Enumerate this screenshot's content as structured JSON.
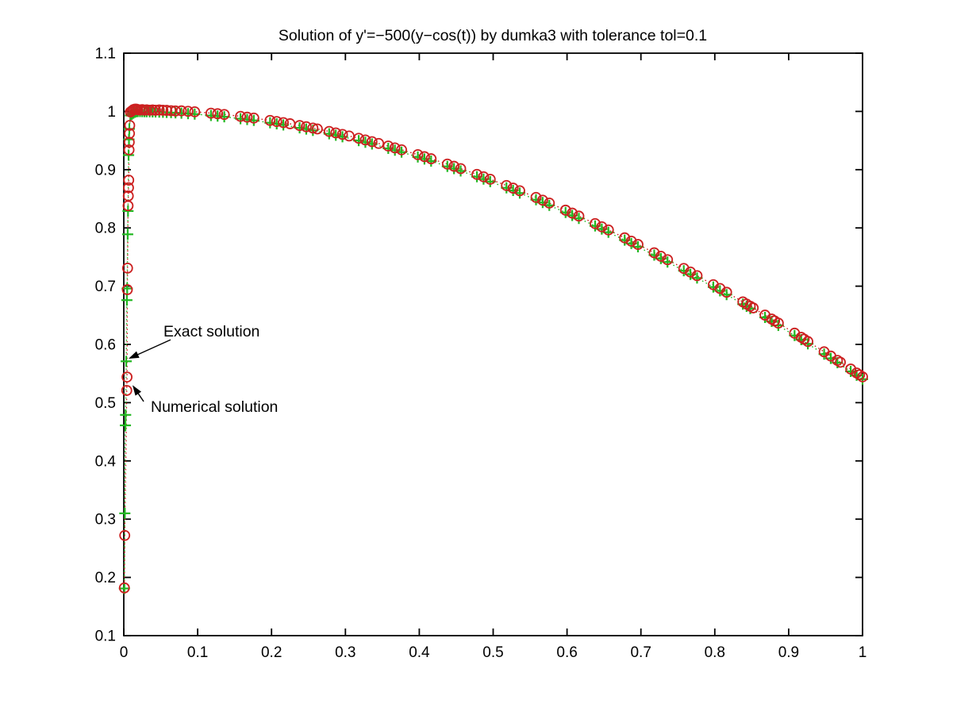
{
  "figure": {
    "background": "#ffffff",
    "axes_color": "#000000"
  },
  "chart_data": {
    "type": "scatter",
    "title": "Solution of y'=−500(y−cos(t)) by dumka3 with tolerance tol=0.1",
    "xlabel": "",
    "ylabel": "",
    "xlim": [
      0,
      1
    ],
    "ylim": [
      0.1,
      1.1
    ],
    "grid": false,
    "legend_position": "none",
    "xtick_values": [
      0,
      0.1,
      0.2,
      0.3,
      0.4,
      0.5,
      0.6,
      0.7,
      0.8,
      0.9,
      1
    ],
    "xtick_labels": [
      "0",
      "0.1",
      "0.2",
      "0.3",
      "0.4",
      "0.5",
      "0.6",
      "0.7",
      "0.8",
      "0.9",
      "1"
    ],
    "ytick_values": [
      0.1,
      0.2,
      0.3,
      0.4,
      0.5,
      0.6,
      0.7,
      0.8,
      0.9,
      1,
      1.1
    ],
    "ytick_labels": [
      "0.1",
      "0.2",
      "0.3",
      "0.4",
      "0.5",
      "0.6",
      "0.7",
      "0.8",
      "0.9",
      "1",
      "1.1"
    ],
    "annotations": [
      {
        "text": "Exact solution",
        "text_xy": [
          0.0537,
          0.623
        ],
        "arrow_from": [
          0.0634,
          0.608
        ],
        "arrow_to": [
          0.0064,
          0.5754
        ]
      },
      {
        "text": "Numerical solution",
        "text_xy": [
          0.0365,
          0.4938
        ],
        "arrow_from": [
          0.0269,
          0.502
        ],
        "arrow_to": [
          0.0118,
          0.53
        ]
      }
    ],
    "series": [
      {
        "name": "Exact solution",
        "marker": "plus",
        "color": "#22b822",
        "line_style": "dotted",
        "points": [
          [
            0.0008,
            0.181
          ],
          [
            0.0014,
            0.31
          ],
          [
            0.0022,
            0.461
          ],
          [
            0.0025,
            0.479
          ],
          [
            0.0033,
            0.571
          ],
          [
            0.0042,
            0.676
          ],
          [
            0.0046,
            0.696
          ],
          [
            0.0053,
            0.789
          ],
          [
            0.0057,
            0.829
          ],
          [
            0.0065,
            0.925
          ],
          [
            0.007,
            0.952
          ],
          [
            0.0075,
            0.97
          ],
          [
            0.009,
            0.993
          ],
          [
            0.011,
            0.995
          ],
          [
            0.013,
            0.997
          ],
          [
            0.015,
            0.9985
          ],
          [
            0.017,
            0.9995
          ],
          [
            0.019,
            0.9998
          ],
          [
            0.022,
            0.9998
          ],
          [
            0.025,
            0.9997
          ],
          [
            0.028,
            0.9996
          ],
          [
            0.031,
            0.9995
          ],
          [
            0.035,
            0.9994
          ],
          [
            0.039,
            0.9992
          ],
          [
            0.043,
            0.9991
          ],
          [
            0.048,
            0.9988
          ],
          [
            0.053,
            0.9986
          ],
          [
            0.058,
            0.9983
          ],
          [
            0.064,
            0.998
          ],
          [
            0.07,
            0.9976
          ],
          [
            0.078,
            0.997
          ],
          [
            0.087,
            0.9962
          ],
          [
            0.096,
            0.9954
          ],
          [
            0.118,
            0.993
          ],
          [
            0.127,
            0.992
          ],
          [
            0.136,
            0.9908
          ],
          [
            0.158,
            0.9875
          ],
          [
            0.167,
            0.9861
          ],
          [
            0.176,
            0.9846
          ],
          [
            0.198,
            0.9805
          ],
          [
            0.207,
            0.9787
          ],
          [
            0.216,
            0.9768
          ],
          [
            0.238,
            0.9718
          ],
          [
            0.247,
            0.9697
          ],
          [
            0.256,
            0.9674
          ],
          [
            0.278,
            0.9616
          ],
          [
            0.287,
            0.9591
          ],
          [
            0.296,
            0.9565
          ],
          [
            0.318,
            0.9499
          ],
          [
            0.327,
            0.947
          ],
          [
            0.336,
            0.9441
          ],
          [
            0.358,
            0.9366
          ],
          [
            0.367,
            0.9334
          ],
          [
            0.376,
            0.9301
          ],
          [
            0.398,
            0.9218
          ],
          [
            0.407,
            0.9183
          ],
          [
            0.416,
            0.9147
          ],
          [
            0.438,
            0.9056
          ],
          [
            0.447,
            0.9018
          ],
          [
            0.456,
            0.8978
          ],
          [
            0.478,
            0.8879
          ],
          [
            0.487,
            0.8838
          ],
          [
            0.496,
            0.8795
          ],
          [
            0.518,
            0.8688
          ],
          [
            0.527,
            0.8643
          ],
          [
            0.536,
            0.8598
          ],
          [
            0.558,
            0.8484
          ],
          [
            0.567,
            0.8436
          ],
          [
            0.576,
            0.8387
          ],
          [
            0.598,
            0.8265
          ],
          [
            0.607,
            0.8214
          ],
          [
            0.616,
            0.8163
          ],
          [
            0.638,
            0.8034
          ],
          [
            0.647,
            0.798
          ],
          [
            0.656,
            0.7925
          ],
          [
            0.678,
            0.779
          ],
          [
            0.687,
            0.7733
          ],
          [
            0.696,
            0.7676
          ],
          [
            0.718,
            0.7533
          ],
          [
            0.727,
            0.7474
          ],
          [
            0.736,
            0.7414
          ],
          [
            0.758,
            0.7265
          ],
          [
            0.767,
            0.7203
          ],
          [
            0.776,
            0.714
          ],
          [
            0.798,
            0.6985
          ],
          [
            0.807,
            0.692
          ],
          [
            0.816,
            0.6855
          ],
          [
            0.838,
            0.669
          ],
          [
            0.843,
            0.6653
          ],
          [
            0.848,
            0.6616
          ],
          [
            0.868,
            0.6463
          ],
          [
            0.877,
            0.6395
          ],
          [
            0.886,
            0.6326
          ],
          [
            0.908,
            0.6153
          ],
          [
            0.917,
            0.6082
          ],
          [
            0.926,
            0.601
          ],
          [
            0.948,
            0.5833
          ],
          [
            0.957,
            0.576
          ],
          [
            0.966,
            0.5686
          ],
          [
            0.984,
            0.5537
          ],
          [
            0.992,
            0.547
          ],
          [
            1.0,
            0.5403
          ]
        ]
      },
      {
        "name": "Numerical solution",
        "marker": "circle",
        "color": "#cc2020",
        "line_style": "dotted",
        "points": [
          [
            0.0008,
            0.182
          ],
          [
            0.0013,
            0.272
          ],
          [
            0.004,
            0.521
          ],
          [
            0.0044,
            0.544
          ],
          [
            0.0048,
            0.694
          ],
          [
            0.0051,
            0.731
          ],
          [
            0.0058,
            0.838
          ],
          [
            0.0061,
            0.855
          ],
          [
            0.0064,
            0.869
          ],
          [
            0.0067,
            0.882
          ],
          [
            0.0071,
            0.934
          ],
          [
            0.0074,
            0.947
          ],
          [
            0.0077,
            0.962
          ],
          [
            0.008,
            0.976
          ],
          [
            0.009,
            0.999
          ],
          [
            0.011,
            1.001
          ],
          [
            0.013,
            1.003
          ],
          [
            0.015,
            1.004
          ],
          [
            0.017,
            1.004
          ],
          [
            0.019,
            1.003
          ],
          [
            0.022,
            1.0025
          ],
          [
            0.025,
            1.003
          ],
          [
            0.028,
            1.0022
          ],
          [
            0.031,
            1.0028
          ],
          [
            0.035,
            1.002
          ],
          [
            0.039,
            1.0026
          ],
          [
            0.043,
            1.002
          ],
          [
            0.048,
            1.0025
          ],
          [
            0.053,
            1.002
          ],
          [
            0.058,
            1.0018
          ],
          [
            0.064,
            1.0012
          ],
          [
            0.07,
            1.0008
          ],
          [
            0.078,
            1.001
          ],
          [
            0.087,
            1.0002
          ],
          [
            0.096,
            0.9994
          ],
          [
            0.118,
            0.997
          ],
          [
            0.127,
            0.996
          ],
          [
            0.136,
            0.9948
          ],
          [
            0.158,
            0.9915
          ],
          [
            0.167,
            0.9901
          ],
          [
            0.176,
            0.9886
          ],
          [
            0.198,
            0.9845
          ],
          [
            0.207,
            0.9827
          ],
          [
            0.216,
            0.9808
          ],
          [
            0.225,
            0.9788
          ],
          [
            0.238,
            0.9758
          ],
          [
            0.247,
            0.9737
          ],
          [
            0.256,
            0.9714
          ],
          [
            0.262,
            0.9699
          ],
          [
            0.278,
            0.9656
          ],
          [
            0.287,
            0.9631
          ],
          [
            0.296,
            0.9605
          ],
          [
            0.305,
            0.9578
          ],
          [
            0.318,
            0.9539
          ],
          [
            0.327,
            0.951
          ],
          [
            0.336,
            0.9481
          ],
          [
            0.345,
            0.945
          ],
          [
            0.358,
            0.9406
          ],
          [
            0.367,
            0.9374
          ],
          [
            0.376,
            0.9341
          ],
          [
            0.398,
            0.9258
          ],
          [
            0.407,
            0.9223
          ],
          [
            0.416,
            0.9187
          ],
          [
            0.438,
            0.9096
          ],
          [
            0.447,
            0.9058
          ],
          [
            0.456,
            0.9018
          ],
          [
            0.478,
            0.8919
          ],
          [
            0.487,
            0.8878
          ],
          [
            0.496,
            0.8835
          ],
          [
            0.518,
            0.8728
          ],
          [
            0.527,
            0.8683
          ],
          [
            0.536,
            0.8638
          ],
          [
            0.558,
            0.8524
          ],
          [
            0.567,
            0.8476
          ],
          [
            0.576,
            0.8427
          ],
          [
            0.598,
            0.8305
          ],
          [
            0.607,
            0.8254
          ],
          [
            0.616,
            0.8203
          ],
          [
            0.638,
            0.8074
          ],
          [
            0.647,
            0.802
          ],
          [
            0.656,
            0.7965
          ],
          [
            0.678,
            0.783
          ],
          [
            0.687,
            0.7773
          ],
          [
            0.696,
            0.7716
          ],
          [
            0.718,
            0.7573
          ],
          [
            0.727,
            0.7514
          ],
          [
            0.736,
            0.7454
          ],
          [
            0.758,
            0.7305
          ],
          [
            0.767,
            0.7243
          ],
          [
            0.776,
            0.718
          ],
          [
            0.798,
            0.7025
          ],
          [
            0.807,
            0.696
          ],
          [
            0.816,
            0.6895
          ],
          [
            0.838,
            0.673
          ],
          [
            0.843,
            0.6693
          ],
          [
            0.848,
            0.6656
          ],
          [
            0.852,
            0.6626
          ],
          [
            0.868,
            0.6503
          ],
          [
            0.877,
            0.6435
          ],
          [
            0.881,
            0.6404
          ],
          [
            0.886,
            0.6366
          ],
          [
            0.908,
            0.6193
          ],
          [
            0.917,
            0.6122
          ],
          [
            0.921,
            0.609
          ],
          [
            0.926,
            0.605
          ],
          [
            0.948,
            0.5873
          ],
          [
            0.957,
            0.58
          ],
          [
            0.966,
            0.5726
          ],
          [
            0.97,
            0.5693
          ],
          [
            0.984,
            0.5577
          ],
          [
            0.992,
            0.551
          ],
          [
            0.996,
            0.5477
          ],
          [
            1.0,
            0.5443
          ]
        ]
      }
    ]
  }
}
